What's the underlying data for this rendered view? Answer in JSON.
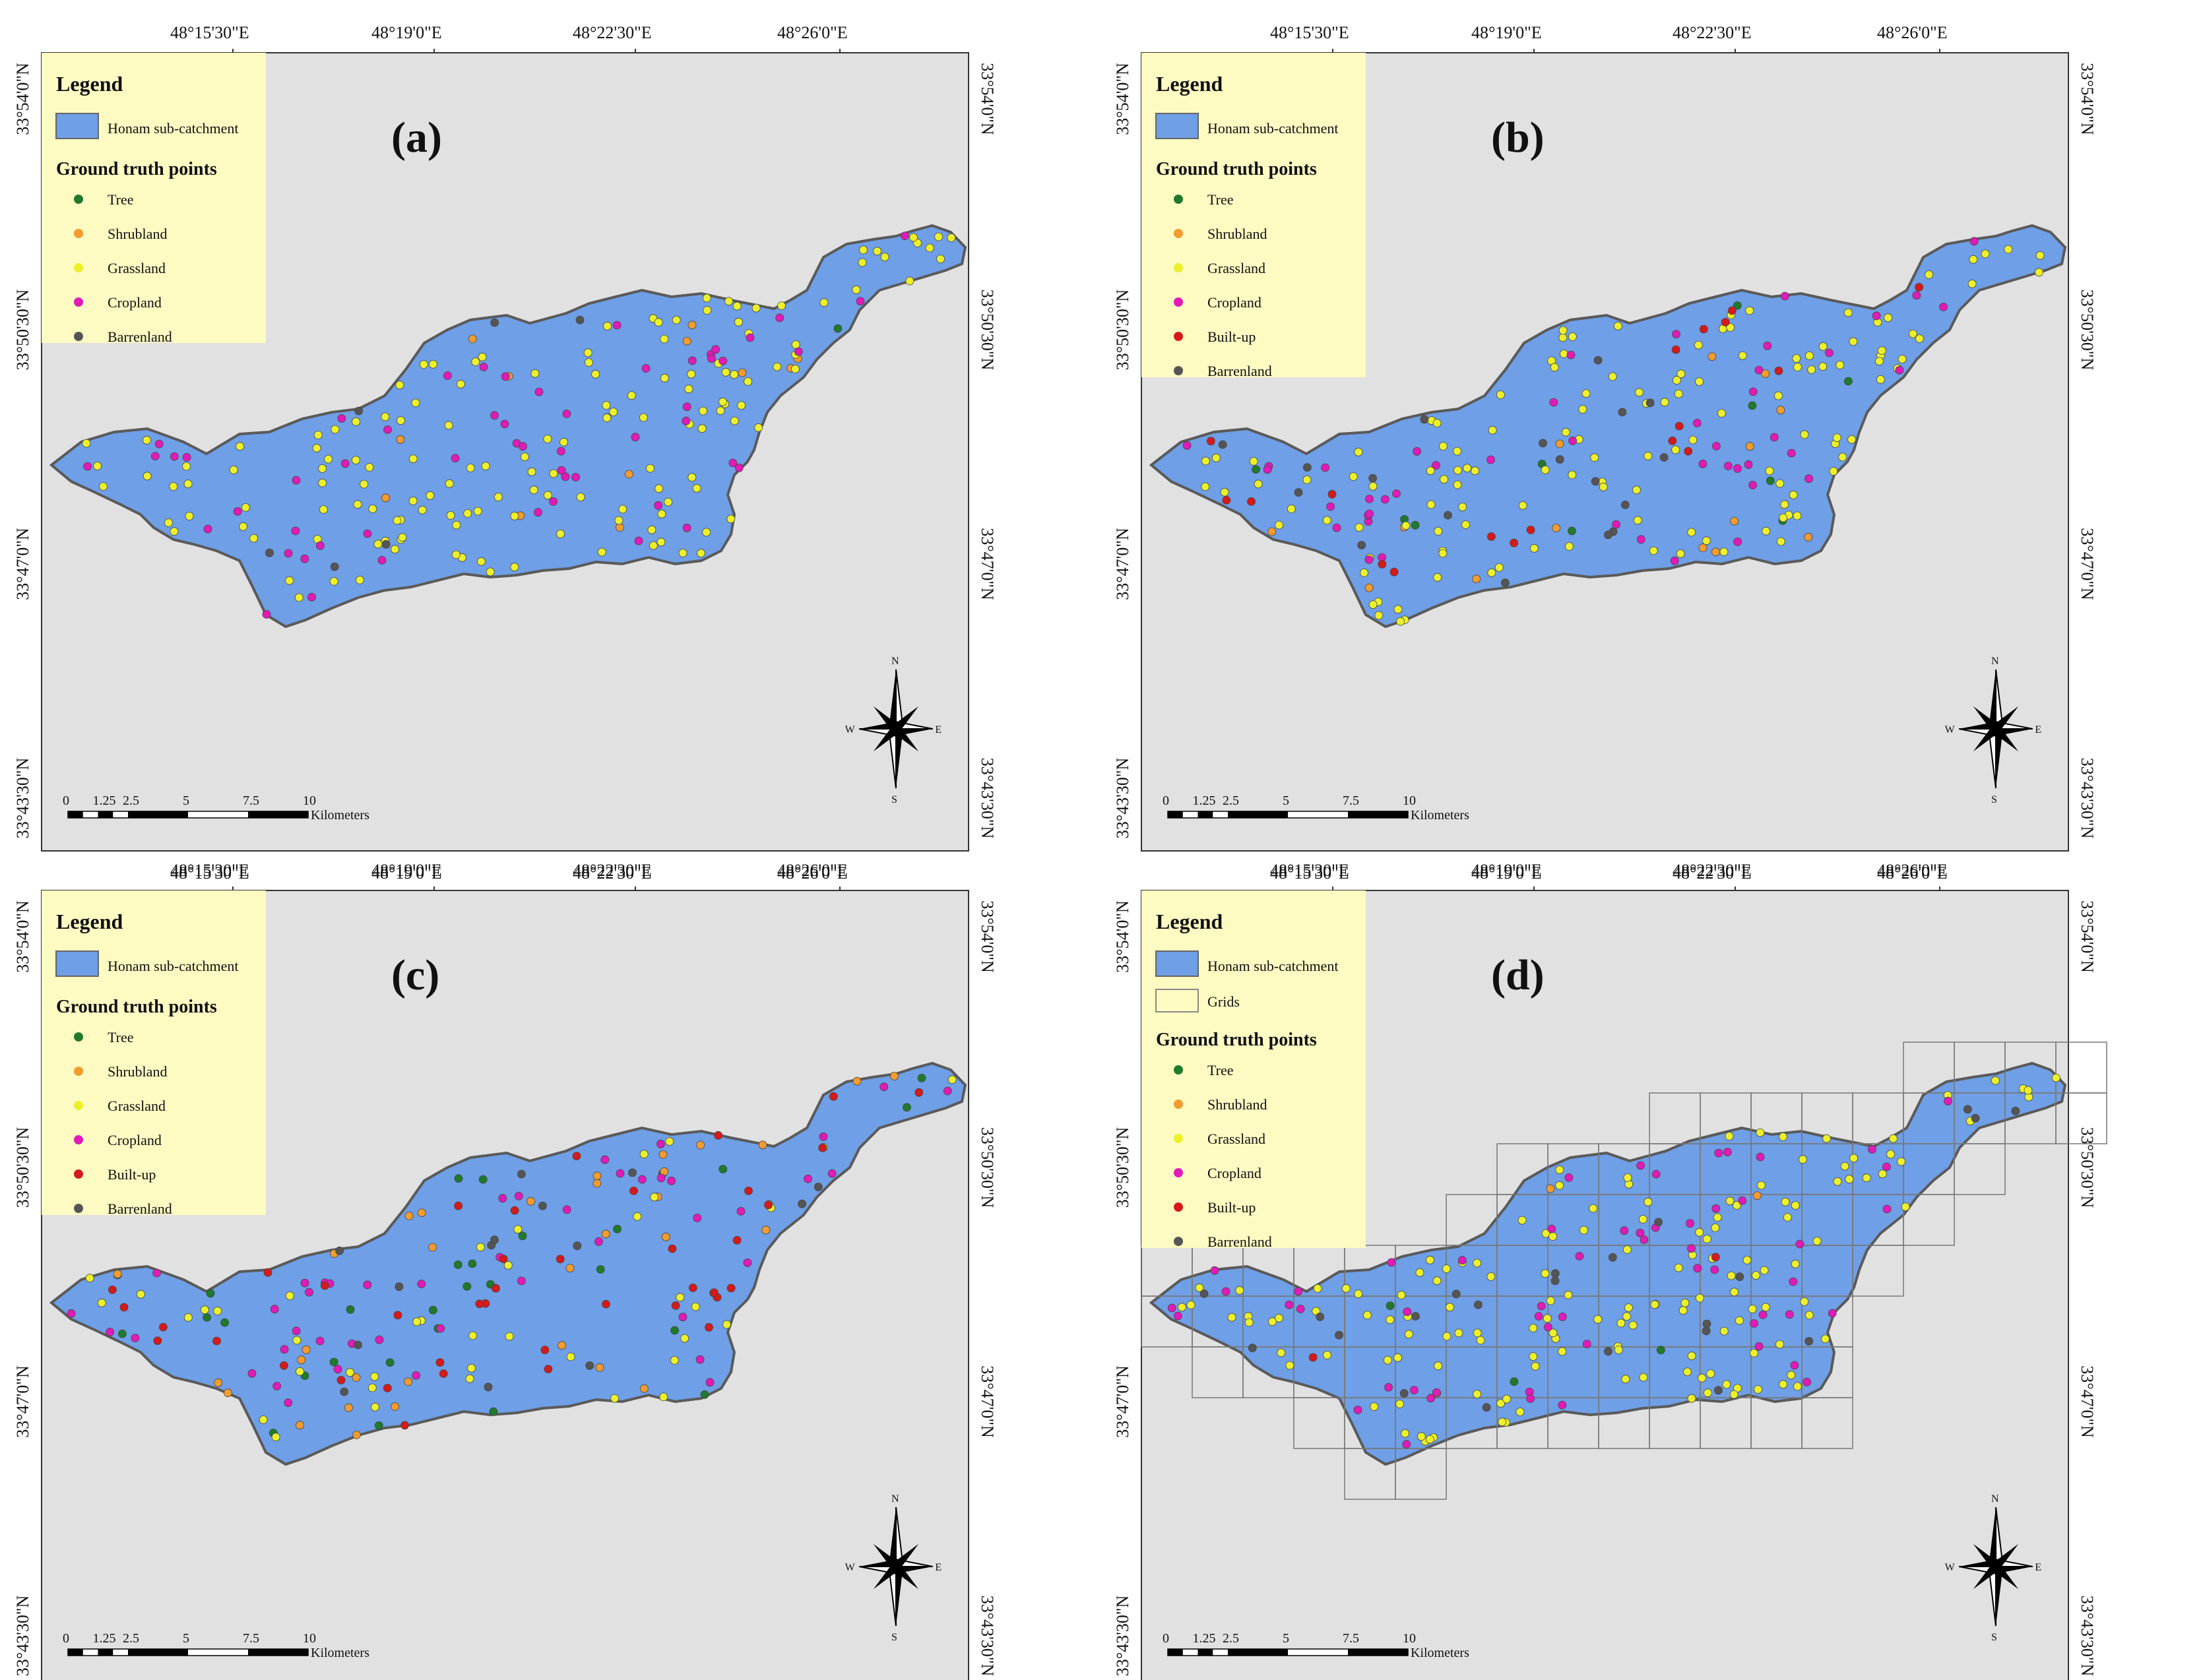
{
  "common": {
    "top_lon_labels": [
      "48°15'30\"E",
      "48°19'0\"E",
      "48°22'30\"E",
      "48°26'0\"E"
    ],
    "bottom_lon_labels": [
      "48°15'30\"E",
      "48°19'0\"E",
      "48°22'30\"E",
      "48°26'0\"E"
    ],
    "lat_labels": [
      "33°54'0\"N",
      "33°50'30\"N",
      "33°47'0\"N",
      "33°43'30\"N"
    ],
    "legend_title": "Legend",
    "catchment_label": "Honam sub-catchment",
    "grids_label": "Grids",
    "points_title": "Ground truth points",
    "scale_ticks": [
      "0",
      "1.25",
      "2.5",
      "5",
      "7.5",
      "10"
    ],
    "scale_unit": "Kilometers",
    "north": {
      "n": "N",
      "s": "S",
      "e": "E",
      "w": "W"
    }
  },
  "colors": {
    "map_background": "#e1e1e1",
    "catchment_fill": "#6f9fe6",
    "catchment_edge": "#5a5a5a",
    "legend_bg": "#fdfbc2",
    "Tree": "#1f7a2c",
    "Shrubland": "#f29b2e",
    "Grassland": "#ecf02a",
    "Cropland": "#e21ab8",
    "Built-up": "#d61a1a",
    "Barrenland": "#555555"
  },
  "panels": [
    {
      "id": "a",
      "label": "(a)",
      "classes": [
        "Tree",
        "Shrubland",
        "Grassland",
        "Cropland",
        "Barrenland"
      ],
      "grids": false,
      "points": {
        "Tree": 1,
        "Shrubland": 12,
        "Grassland": 150,
        "Cropland": 55,
        "Barrenland": 6
      }
    },
    {
      "id": "b",
      "label": "(b)",
      "classes": [
        "Tree",
        "Shrubland",
        "Grassland",
        "Cropland",
        "Built-up",
        "Barrenland"
      ],
      "grids": false,
      "points": {
        "Tree": 10,
        "Shrubland": 14,
        "Grassland": 130,
        "Cropland": 45,
        "Built-up": 18,
        "Barrenland": 18
      }
    },
    {
      "id": "c",
      "label": "(c)",
      "classes": [
        "Tree",
        "Shrubland",
        "Grassland",
        "Cropland",
        "Built-up",
        "Barrenland"
      ],
      "grids": false,
      "points": {
        "Tree": 30,
        "Shrubland": 32,
        "Grassland": 40,
        "Cropland": 45,
        "Built-up": 40,
        "Barrenland": 14
      }
    },
    {
      "id": "d",
      "label": "(d)",
      "classes": [
        "Tree",
        "Shrubland",
        "Grassland",
        "Cropland",
        "Built-up",
        "Barrenland"
      ],
      "grids": true,
      "points": {
        "Tree": 3,
        "Shrubland": 2,
        "Grassland": 150,
        "Cropland": 55,
        "Built-up": 2,
        "Barrenland": 22
      }
    }
  ]
}
